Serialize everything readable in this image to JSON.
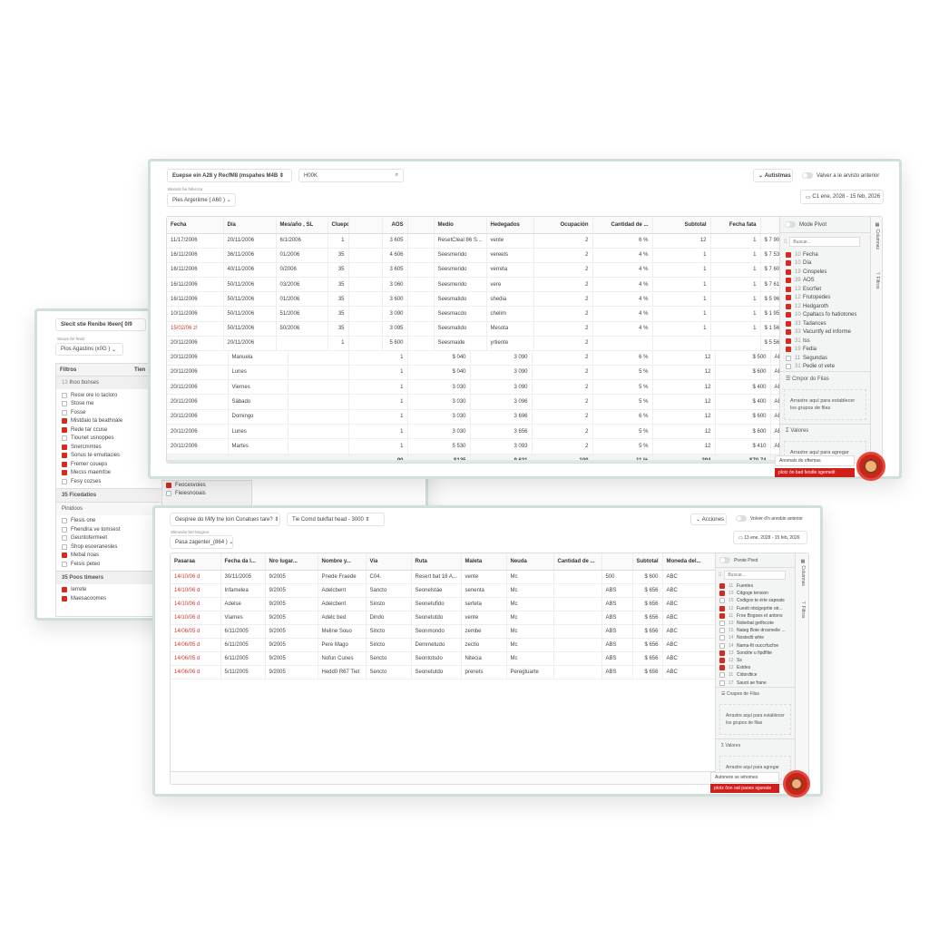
{
  "window_a": {
    "title": "Slecit stie Renibe l6een[ 0/9",
    "sub_label": "Sinure fer finitir",
    "select": "Pios Agastins (x0G )",
    "filters_header": "Filtros",
    "col2_header": "Tien",
    "group1": {
      "label": "Ihoo bonses",
      "count": "13",
      "value": "20"
    },
    "items1": [
      {
        "label": "Resw ore io tacloro",
        "checked": false
      },
      {
        "label": "Stose me",
        "checked": false
      },
      {
        "label": "Fosse",
        "checked": false
      },
      {
        "label": "Mistdaio tá beathnále",
        "checked": true
      },
      {
        "label": "Rede tar ccuse",
        "checked": true
      },
      {
        "label": "Tiounet usnoppes",
        "checked": false
      },
      {
        "label": "Snercmmtes",
        "checked": true
      },
      {
        "label": "Sonus te emuitacies",
        "checked": true
      },
      {
        "label": "Fremer coueps",
        "checked": true
      },
      {
        "label": "Mecss maemfoe",
        "checked": true
      },
      {
        "label": "Fesy cozses",
        "checked": false
      }
    ],
    "group2": {
      "label": "Ficedatios",
      "count": "35"
    },
    "section2": "Pinidoos",
    "items2": [
      {
        "label": "Flesis one",
        "checked": false
      },
      {
        "label": "Fhendira ve tomsest",
        "checked": false
      },
      {
        "label": "Geuntofermeet",
        "checked": false
      },
      {
        "label": "Shop esoeranesles",
        "checked": false
      },
      {
        "label": "Mebal noas",
        "checked": true
      },
      {
        "label": "Feisis peteo",
        "checked": false
      }
    ],
    "group3": {
      "label": "Poos timeers",
      "count": "35"
    },
    "items3": [
      {
        "label": "Ierrete",
        "checked": true
      },
      {
        "label": "Maesacoomes",
        "checked": true
      }
    ],
    "lower_rows": [
      "Feocesvoies",
      "Fieiesnooais"
    ]
  },
  "window_b": {
    "select1": "Euepse ein A28 y RecfM8 (mspahes M4B",
    "search_value": "H00K",
    "sub_label": "Bloricitr be hifeccra",
    "select2": "Pies Argeriime ( A60 )",
    "actions_button": "Autistmas",
    "toggle_label": "Valver a le arvisto anterior",
    "date_range": "C1 ene, 2028 - 15 feb, 2026",
    "headers": [
      "Fecha",
      "Día",
      "Mes/año , SL",
      "Cluepdes",
      "",
      "AOS",
      "",
      "Medio",
      "Hedegados",
      "Ocupación",
      "Cantidad de ...",
      "Subtotal",
      "Fecha fata",
      ""
    ],
    "rows": [
      [
        "11/17/2006",
        "20/11/2006",
        "6/1/2006",
        "1",
        "",
        "3 605",
        "",
        "ResetCleal 86 S...",
        "vente",
        "2",
        "6 %",
        "12",
        "1",
        "$ 7 904 4 /1"
      ],
      [
        "16/11/2006",
        "36/11/2006",
        "01/2006",
        "35",
        "",
        "4 606",
        "",
        "Seesmerido",
        "vereets",
        "2",
        "4 %",
        "1",
        "1",
        "$ 7 536"
      ],
      [
        "16/11/2006",
        "40/11/2006",
        "0/2006",
        "35",
        "",
        "3 605",
        "",
        "Seesmerido",
        "verreta",
        "2",
        "4 %",
        "1",
        "1",
        "$ 7 605"
      ],
      [
        "16/11/2006",
        "50/11/2006",
        "03/2006",
        "35",
        "",
        "3 060",
        "",
        "Seesmerido",
        "vere",
        "2",
        "4 %",
        "1",
        "1",
        "$ 7 615"
      ],
      [
        "16/11/2006",
        "50/11/2006",
        "01/2006",
        "35",
        "",
        "3 600",
        "",
        "Seesmatido",
        "shedia",
        "2",
        "4 %",
        "1",
        "1",
        "$ 5 96"
      ],
      [
        "10/11/2006",
        "50/11/2006",
        "51/2006",
        "35",
        "",
        "3 090",
        "",
        "Seesmacdo",
        "chelim",
        "2",
        "4 %",
        "1",
        "1",
        "$ 1 95"
      ],
      [
        "15/02/06 z!",
        "50/11/2006",
        "50/2006",
        "35",
        "",
        "3 095",
        "",
        "Seesmatido",
        "Mesota",
        "2",
        "4 %",
        "1",
        "1",
        "$ 1 56"
      ],
      [
        "20/11/2006",
        "20/11/2006",
        "",
        "1",
        "",
        "5 600",
        "",
        "Seesmaide",
        "yrtiente",
        "2",
        "",
        "",
        "",
        "$ 5 56"
      ]
    ],
    "red_row": 6,
    "rows2": [
      [
        "20/11/2006",
        "Manuela",
        "",
        "1",
        "$ 040",
        "3 090",
        "2",
        "6 %",
        "12",
        "$ 500",
        "ABS"
      ],
      [
        "20/11/2006",
        "Lunes",
        "",
        "1",
        "$ 040",
        "3 090",
        "2",
        "5 %",
        "12",
        "$ 600",
        "ABS"
      ],
      [
        "20/11/2006",
        "Viernes",
        "",
        "1",
        "3 030",
        "3 090",
        "2",
        "5 %",
        "12",
        "$ 400",
        "ABS"
      ],
      [
        "20/11/2006",
        "Sábado",
        "",
        "1",
        "3 030",
        "3 096",
        "2",
        "5 %",
        "12",
        "$ 400",
        "ABS"
      ],
      [
        "20/11/2006",
        "Domingo",
        "",
        "1",
        "3 030",
        "3 696",
        "2",
        "6 %",
        "12",
        "$ 600",
        "ABS"
      ],
      [
        "20/11/2006",
        "Lunes",
        "",
        "1",
        "3 030",
        "3 656",
        "2",
        "5 %",
        "12",
        "$ 600",
        "ABS"
      ],
      [
        "20/11/2006",
        "Martes",
        "",
        "1",
        "5 530",
        "3 093",
        "2",
        "5 %",
        "12",
        "$ 410",
        "ABS"
      ]
    ],
    "footer": [
      "",
      "",
      "",
      "90",
      "$135",
      "9 631",
      "100",
      "11 %",
      "394",
      "$70.74",
      ""
    ],
    "panel": {
      "pivot_label": "Mode Pivot",
      "search_placeholder": "Buscar...",
      "columns": [
        {
          "n": "10",
          "label": "Fecha",
          "checked": true
        },
        {
          "n": "10",
          "label": "Día",
          "checked": true
        },
        {
          "n": "19",
          "label": "Cinspeles",
          "checked": true
        },
        {
          "n": "39",
          "label": "AOS",
          "checked": true
        },
        {
          "n": "13",
          "label": "Escrfiet",
          "checked": true
        },
        {
          "n": "12",
          "label": "Frutopedes",
          "checked": true
        },
        {
          "n": "12",
          "label": "Hedgaroth",
          "checked": true
        },
        {
          "n": "10",
          "label": "Cpaltacs fo hatiotones",
          "checked": true
        },
        {
          "n": "33",
          "label": "Tadances",
          "checked": true
        },
        {
          "n": "33",
          "label": "Vacuntfy ed informe",
          "checked": true
        },
        {
          "n": "31",
          "label": "Iss",
          "checked": true
        },
        {
          "n": "19",
          "label": "Fedia",
          "checked": true
        },
        {
          "n": "11",
          "label": "Segundas",
          "checked": false
        },
        {
          "n": "31",
          "label": "Pedie ot vete",
          "checked": false
        }
      ],
      "row_groups_title": "Cmpor do Filas",
      "row_groups_drop": "Arrastre aquí para establecer los grupos de filas",
      "values_title": "Valores",
      "values_drop": "Arrastre aquí para agregar"
    },
    "tabs": [
      "Columnas",
      "Filtros"
    ],
    "tooltip": "Anomals do oftemas",
    "red_button": "plotz ón bad feodle sgemeitt"
  },
  "window_c": {
    "select1": "Gespree do Mify tne loin Conatues tare?",
    "select2": "Tie Comd bukflat head - 3000",
    "sub_label": "Slimovito bet Mognar",
    "select3": "Pasa zagenter_(864 )",
    "actions_button": "Acciones",
    "toggle_label": "Volver d'n anrsbin anterior",
    "date_range": "13 ene, 2028 - 15 feb, 2026",
    "headers": [
      "Pasaraa",
      "Fecha da l...",
      "Nro lugar...",
      "Nombre y...",
      "Via",
      "Ruta",
      "Maleta",
      "Neuda",
      "Cantidad de ...",
      "",
      "Subtotal",
      "Moneda del..."
    ],
    "rows": [
      [
        "14/10/06 d",
        "30/11/2005",
        "9/2005",
        "Pnede Fraede",
        "C04.",
        "Resert bat 18 A...",
        "vente",
        "Mc",
        "",
        "500",
        "$ 600",
        "ABC"
      ],
      [
        "14/10/06 d",
        "Infamelea",
        "9/2005",
        "Adelcbent",
        "Sancto",
        "Seonelstáe",
        "senenta",
        "Mc",
        "",
        "ABS",
        "$ 656",
        "ABC"
      ],
      [
        "14/10/06 d",
        "Adelse",
        "9/2005",
        "Adelcbent",
        "Sinsto",
        "Seonetufido",
        "serteta",
        "Mc",
        "",
        "ABS",
        "$ 656",
        "ABC"
      ],
      [
        "14/10/06 d",
        "Viarnes",
        "9/2005",
        "Adelc bed",
        "Dindo",
        "Seonetutdo",
        "vente",
        "Mc",
        "",
        "ABS",
        "$ 656",
        "ABC"
      ],
      [
        "14/06/05 d",
        "6/11/2005",
        "9/2005",
        "Meline Souo",
        "Sincto",
        "Seonmondo",
        "zembe",
        "Mc",
        "",
        "ABS",
        "$ 656",
        "ABC"
      ],
      [
        "14/06/05 d",
        "6/11/2005",
        "9/2005",
        "Pere Mago",
        "Siricto",
        "Demmetudo",
        "zectio",
        "Mc",
        "",
        "ABS",
        "$ 656",
        "ABC"
      ],
      [
        "14/06/05 d",
        "6/11/2005",
        "9/2005",
        "Nofun Cunes",
        "Sencto",
        "Seontotsdo",
        "Nitecia",
        "Mc",
        "",
        "ABS",
        "$ 656",
        "ABC"
      ],
      [
        "14/06/06 d",
        "5/11/2005",
        "9/2005",
        "Hedd0 R67 Tiet",
        "Sencto",
        "Seonetutdo",
        "prenets",
        "Peregtuarte",
        "",
        "ABS",
        "$ 656",
        "ABC"
      ]
    ],
    "panel": {
      "pivot_label": "Pivote Pivot",
      "search_placeholder": "Buscar...",
      "columns": [
        {
          "n": "11",
          "label": "Fuentes",
          "checked": true
        },
        {
          "n": "13",
          "label": "Cdgoge tension",
          "checked": true
        },
        {
          "n": "15",
          "label": "Codigos te érte sapeats",
          "checked": false
        },
        {
          "n": "12",
          "label": "Fuestt oticigeprtie otr...",
          "checked": true
        },
        {
          "n": "11",
          "label": "Froe Bogoes et antons",
          "checked": true
        },
        {
          "n": "13",
          "label": "Nobebat getfocote",
          "checked": false
        },
        {
          "n": "15",
          "label": "Nateg Bote drosmelle ...",
          "checked": false
        },
        {
          "n": "14",
          "label": "Nostedit whie",
          "checked": false
        },
        {
          "n": "14",
          "label": "Nama-fit ouccrfucfoe",
          "checked": false
        },
        {
          "n": "13",
          "label": "Sondrte u fipdflite",
          "checked": true
        },
        {
          "n": "12",
          "label": "Ss",
          "checked": true
        },
        {
          "n": "12",
          "label": "Estdes",
          "checked": true
        },
        {
          "n": "11",
          "label": "Cidordtice",
          "checked": false
        },
        {
          "n": "17",
          "label": "Sauot ae frane",
          "checked": false
        }
      ],
      "row_groups_title": "Cnapes de Filas",
      "row_groups_drop": "Arrastre aquí para establecer los grupos de filas",
      "values_title": "Valores",
      "values_drop": "Arrastre aquí para agregar"
    },
    "tabs": [
      "Columnas",
      "Filtros"
    ],
    "tooltip": "Autonere se iehomes",
    "red_button": "pìotz ôon oat paoes sgunate"
  },
  "colors": {
    "accent": "#d42a20",
    "frame": "#cfe0d8",
    "red_text": "#d03a2f"
  }
}
